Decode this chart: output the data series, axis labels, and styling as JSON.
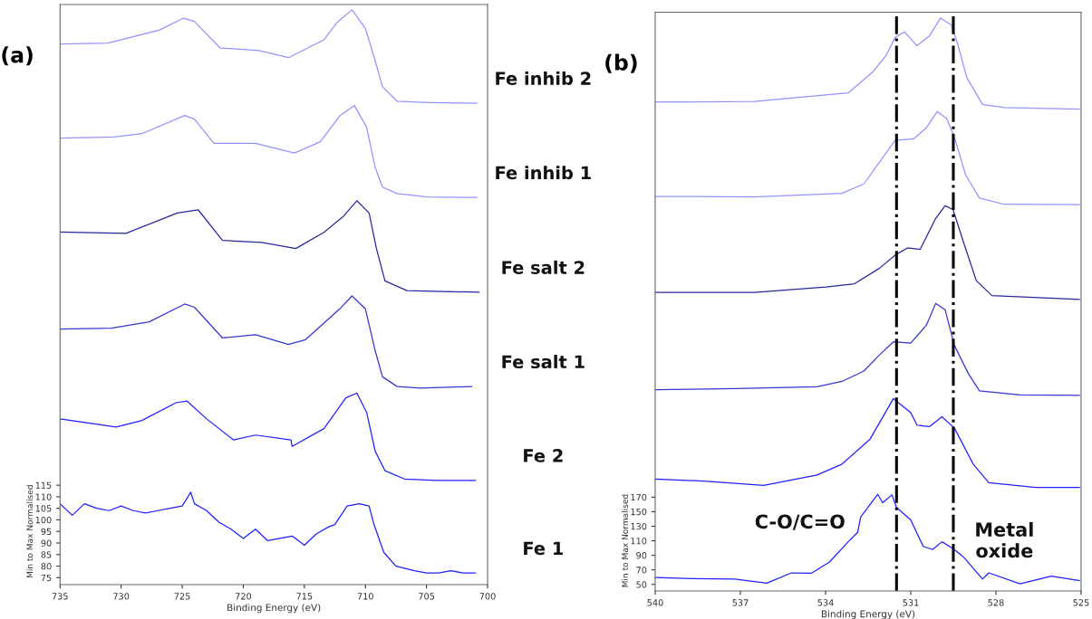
{
  "chart_data": [
    {
      "type": "line",
      "title": "(a)",
      "xlabel": "Binding Energy (eV)",
      "ylabel": "Min to Max Normalised",
      "xlim": [
        735,
        700
      ],
      "xticks": [
        735,
        730,
        725,
        720,
        715,
        710,
        705,
        700
      ],
      "ylim": [
        72,
        323
      ],
      "yticks": [
        75,
        80,
        85,
        90,
        95,
        100,
        105,
        110,
        115
      ],
      "grid": false,
      "legend": false,
      "marker": "none",
      "line_style": "solid",
      "series": [
        {
          "name": "Fe 1",
          "color": "#2020ff",
          "x": [
            735,
            734,
            733,
            732,
            731,
            730,
            729,
            728,
            727,
            726,
            725,
            724.3,
            724,
            723,
            722,
            721,
            720,
            719,
            718,
            717,
            716,
            715,
            714,
            713,
            712.5,
            711.5,
            710.5,
            709.7,
            709.3,
            708.5,
            707.5,
            706,
            705,
            704,
            703,
            702,
            701
          ],
          "values": [
            107,
            102,
            107,
            105,
            104,
            106,
            104,
            103,
            104,
            105,
            106,
            112,
            107,
            104,
            99,
            96,
            92,
            96,
            91,
            92,
            93,
            89,
            94,
            97,
            98,
            106,
            107,
            106,
            98,
            86,
            80,
            78,
            77,
            77,
            78,
            77,
            77
          ]
        },
        {
          "name": "Fe 2",
          "color": "#2020ff",
          "x": [
            735,
            730.4,
            728.3,
            725.5,
            724.6,
            723,
            720.8,
            719,
            716.1,
            716,
            713.4,
            711.6,
            710.7,
            709.9,
            709.2,
            708.4,
            706.8,
            704.2,
            701
          ],
          "values": [
            143.7,
            140.2,
            143,
            150.7,
            151.4,
            143.7,
            134.6,
            136.7,
            134.6,
            131.8,
            139.5,
            152.8,
            154.9,
            146.5,
            129.7,
            121.3,
            117.7,
            117.1,
            117.1
          ]
        },
        {
          "name": "Fe salt 1",
          "color": "#3535d0",
          "x": [
            735,
            730.8,
            727.7,
            724.8,
            724,
            721.7,
            719,
            716.3,
            714.9,
            712.1,
            711.1,
            710,
            709.2,
            708.6,
            707.4,
            705.5,
            701.3
          ],
          "values": [
            182.6,
            183,
            185.7,
            193.4,
            192,
            178.7,
            180.1,
            175.9,
            178,
            191.3,
            196.9,
            191.3,
            173.1,
            161.9,
            157.7,
            157,
            157.7
          ]
        },
        {
          "name": "Fe salt 2",
          "color": "#27279e",
          "x": [
            735,
            729.6,
            725.4,
            723.7,
            721.7,
            718.5,
            715.7,
            713.4,
            711.8,
            710.7,
            709.7,
            709.1,
            708.4,
            706.6,
            700.7
          ],
          "values": [
            224.6,
            224,
            232.8,
            234.2,
            220.9,
            220.1,
            217.4,
            224.4,
            231.4,
            238.1,
            232.8,
            217.4,
            203.4,
            199.2,
            198.5
          ]
        },
        {
          "name": "Fe inhib 1",
          "color": "#9393ff",
          "x": [
            735,
            730.6,
            728.3,
            724.8,
            724,
            722.4,
            719,
            715.8,
            713.7,
            712.1,
            710.9,
            709.9,
            709.2,
            708.6,
            707.4,
            705,
            700.9
          ],
          "values": [
            265.2,
            265.7,
            267.1,
            275,
            273.4,
            262.9,
            262.9,
            258.7,
            263.6,
            274.8,
            279.3,
            269.9,
            252.4,
            244,
            241.2,
            239.7,
            239.5
          ]
        },
        {
          "name": "Fe inhib 2",
          "color": "#9393ff",
          "x": [
            735,
            731.1,
            726.9,
            724.9,
            724,
            721.9,
            718.7,
            716.3,
            713.4,
            712.3,
            711.1,
            710,
            709.2,
            708.6,
            707.4,
            704.7,
            700.9
          ],
          "values": [
            305.9,
            306.3,
            311.9,
            317.1,
            315.7,
            304.2,
            303.1,
            300,
            307.7,
            315.4,
            320.7,
            312.6,
            298.6,
            287.4,
            281.1,
            280.6,
            280.3
          ]
        }
      ]
    },
    {
      "type": "line",
      "title": "(b)",
      "xlabel": "Binding Energy (eV)",
      "ylabel": "Min to Max Normalised",
      "xlim": [
        540,
        525
      ],
      "xticks": [
        540,
        537,
        534,
        531,
        528,
        525
      ],
      "ylim": [
        41,
        837
      ],
      "yticks": [
        50,
        70,
        90,
        110,
        130,
        150,
        170
      ],
      "grid": false,
      "legend": false,
      "marker": "none",
      "line_style": "solid",
      "annotations": [
        "C-O/C=O",
        "Metal\noxide"
      ],
      "ref_lines": [
        {
          "axis": "x",
          "value": 531.5,
          "color": "#000000",
          "line_style": "dashdot"
        },
        {
          "axis": "x",
          "value": 529.5,
          "color": "#000000",
          "line_style": "dashdot"
        }
      ],
      "series": [
        {
          "color": "#2020ff",
          "x": [
            540,
            538.7,
            537.2,
            536.07,
            535.2,
            534.5,
            533.86,
            533.2,
            532.87,
            532.76,
            532.16,
            531.99,
            531.66,
            531.5,
            531.0,
            530.56,
            530.23,
            529.9,
            529.51,
            529.13,
            528.47,
            528.25,
            527.15,
            526.05,
            525.06
          ],
          "values": [
            59.4,
            58,
            57.5,
            51.7,
            65.9,
            65.4,
            80.8,
            108.7,
            121.6,
            143,
            173.9,
            162.3,
            173.1,
            155.9,
            138.8,
            102.3,
            98,
            108.7,
            99.2,
            87.3,
            57.3,
            65.9,
            50.8,
            61.5,
            55.2
          ]
        },
        {
          "color": "#2020ff",
          "x": [
            540,
            538.16,
            536.18,
            534.3,
            533.42,
            532.43,
            531.61,
            531.0,
            530.78,
            530.34,
            529.9,
            529.46,
            528.8,
            528.25,
            526.6,
            525.06
          ],
          "values": [
            194.9,
            191.9,
            186.3,
            200.5,
            215.5,
            249.9,
            305.6,
            286.3,
            269.1,
            267,
            280.7,
            264.9,
            215.5,
            189.8,
            183.3,
            183.3
          ]
        },
        {
          "color": "#3535d0",
          "x": [
            540,
            537.17,
            534.3,
            533.42,
            532.65,
            532.1,
            531.61,
            531.0,
            530.45,
            530.12,
            529.79,
            529.46,
            528.97,
            528.58,
            527.15,
            525.06
          ],
          "values": [
            317.7,
            319.3,
            321.9,
            329.2,
            343.4,
            365.7,
            383.7,
            382,
            406.4,
            436.5,
            427.9,
            378.5,
            339.9,
            316.3,
            310.7,
            310
          ]
        },
        {
          "color": "#27279e",
          "x": [
            540,
            536.51,
            533.98,
            532.98,
            532.1,
            531.55,
            531.11,
            530.67,
            530.12,
            529.79,
            529.51,
            529.13,
            528.69,
            528.14,
            525.06
          ],
          "values": [
            451.5,
            451.5,
            459.2,
            463.5,
            484.9,
            502.9,
            512.8,
            510.6,
            553.5,
            570.7,
            565.6,
            519.2,
            467.8,
            447.2,
            442.1
          ]
        },
        {
          "color": "#9393ff",
          "x": [
            540,
            536.51,
            533.42,
            532.65,
            532.1,
            531.55,
            530.89,
            530.45,
            530.07,
            529.74,
            529.46,
            529.07,
            528.58,
            527.7,
            525.06
          ],
          "values": [
            583.6,
            583,
            587.9,
            600.8,
            630.8,
            660.8,
            663,
            677.9,
            700.3,
            690.9,
            665.1,
            613.6,
            581.4,
            572.8,
            572.3
          ]
        },
        {
          "color": "#9393ff",
          "x": [
            540,
            536.51,
            533.2,
            532.33,
            531.88,
            531.55,
            531.22,
            530.78,
            530.34,
            529.95,
            529.57,
            529.35,
            529.02,
            528.47,
            527.7,
            525.06
          ],
          "values": [
            713.5,
            714.1,
            725.9,
            755.2,
            776.6,
            802.3,
            810,
            790.8,
            804.4,
            829,
            819.5,
            793.7,
            746.6,
            710.1,
            705.8,
            703.7
          ]
        }
      ]
    }
  ]
}
